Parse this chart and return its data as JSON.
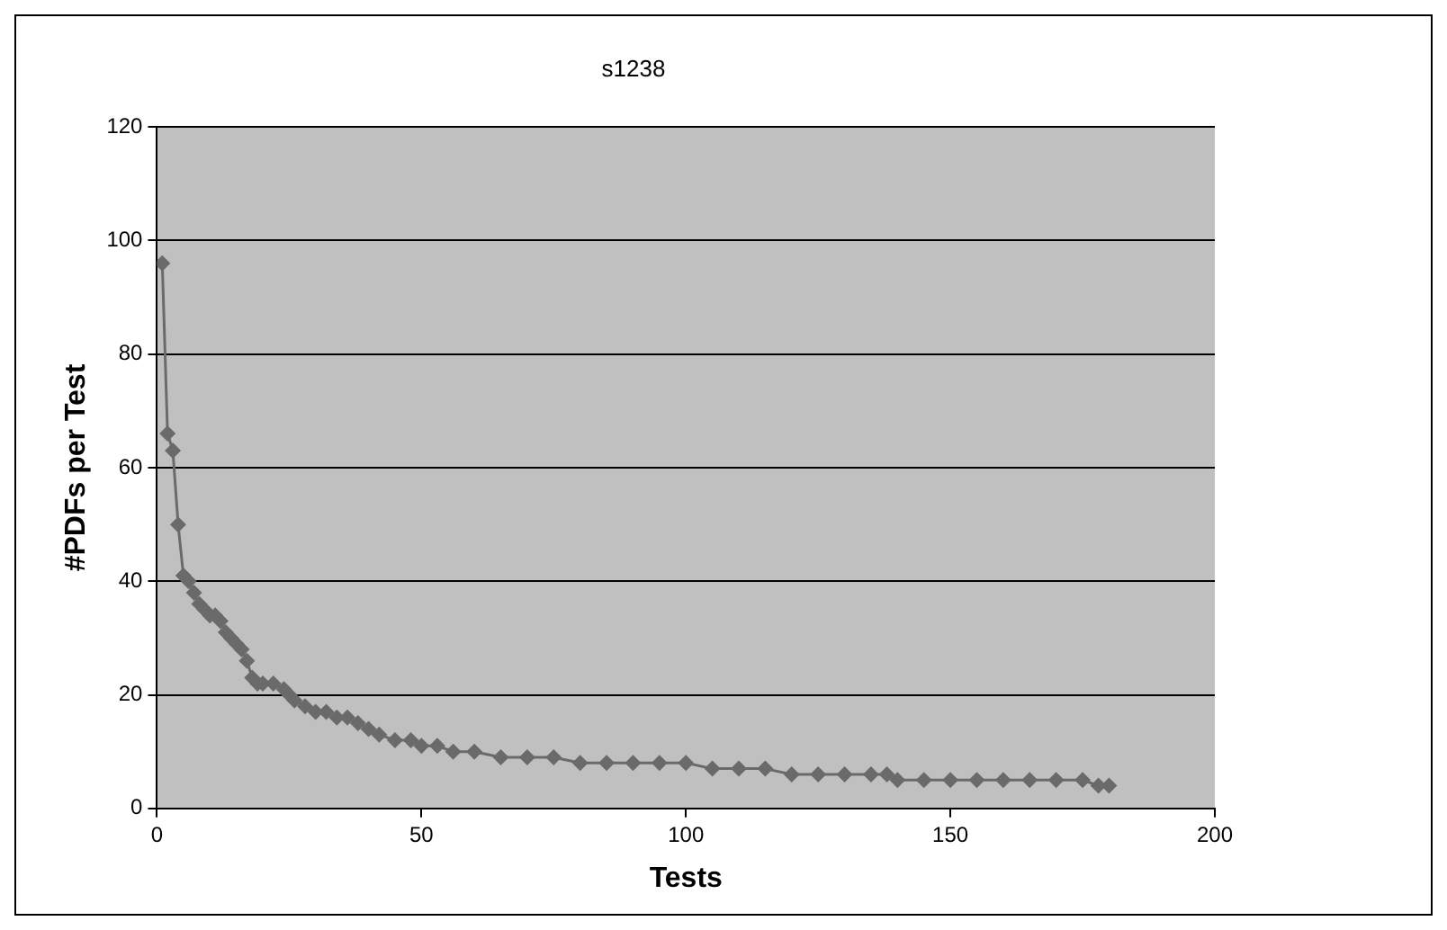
{
  "chart_data": {
    "type": "line",
    "title": "s1238",
    "xlabel": "Tests",
    "ylabel": "#PDFs per Test",
    "x": [
      1,
      2,
      3,
      4,
      5,
      6,
      7,
      8,
      9,
      10,
      11,
      12,
      13,
      14,
      15,
      16,
      17,
      18,
      19,
      20,
      22,
      24,
      25,
      26,
      28,
      30,
      32,
      34,
      36,
      38,
      40,
      42,
      45,
      48,
      50,
      53,
      56,
      60,
      65,
      70,
      75,
      80,
      85,
      90,
      95,
      100,
      105,
      110,
      115,
      120,
      125,
      130,
      135,
      138,
      140,
      145,
      150,
      155,
      160,
      165,
      170,
      175,
      178,
      180
    ],
    "series": [
      {
        "color": "#6a6a6a",
        "values": [
          96,
          66,
          63,
          50,
          41,
          40,
          38,
          36,
          35,
          34,
          34,
          33,
          31,
          30,
          29,
          28,
          26,
          23,
          22,
          22,
          22,
          21,
          20,
          19,
          18,
          17,
          17,
          16,
          16,
          15,
          14,
          13,
          12,
          12,
          11,
          11,
          10,
          10,
          9,
          9,
          9,
          8,
          8,
          8,
          8,
          8,
          7,
          7,
          7,
          6,
          6,
          6,
          6,
          6,
          5,
          5,
          5,
          5,
          5,
          5,
          5,
          5,
          4,
          4
        ]
      }
    ],
    "xlim": [
      0,
      200
    ],
    "xticks": [
      0,
      50,
      100,
      150,
      200
    ],
    "ylim": [
      0,
      120
    ],
    "yticks": [
      0,
      20,
      40,
      60,
      80,
      100,
      120
    ],
    "grid": "y",
    "legend": false,
    "marker": "diamond",
    "line_style": "solid"
  }
}
